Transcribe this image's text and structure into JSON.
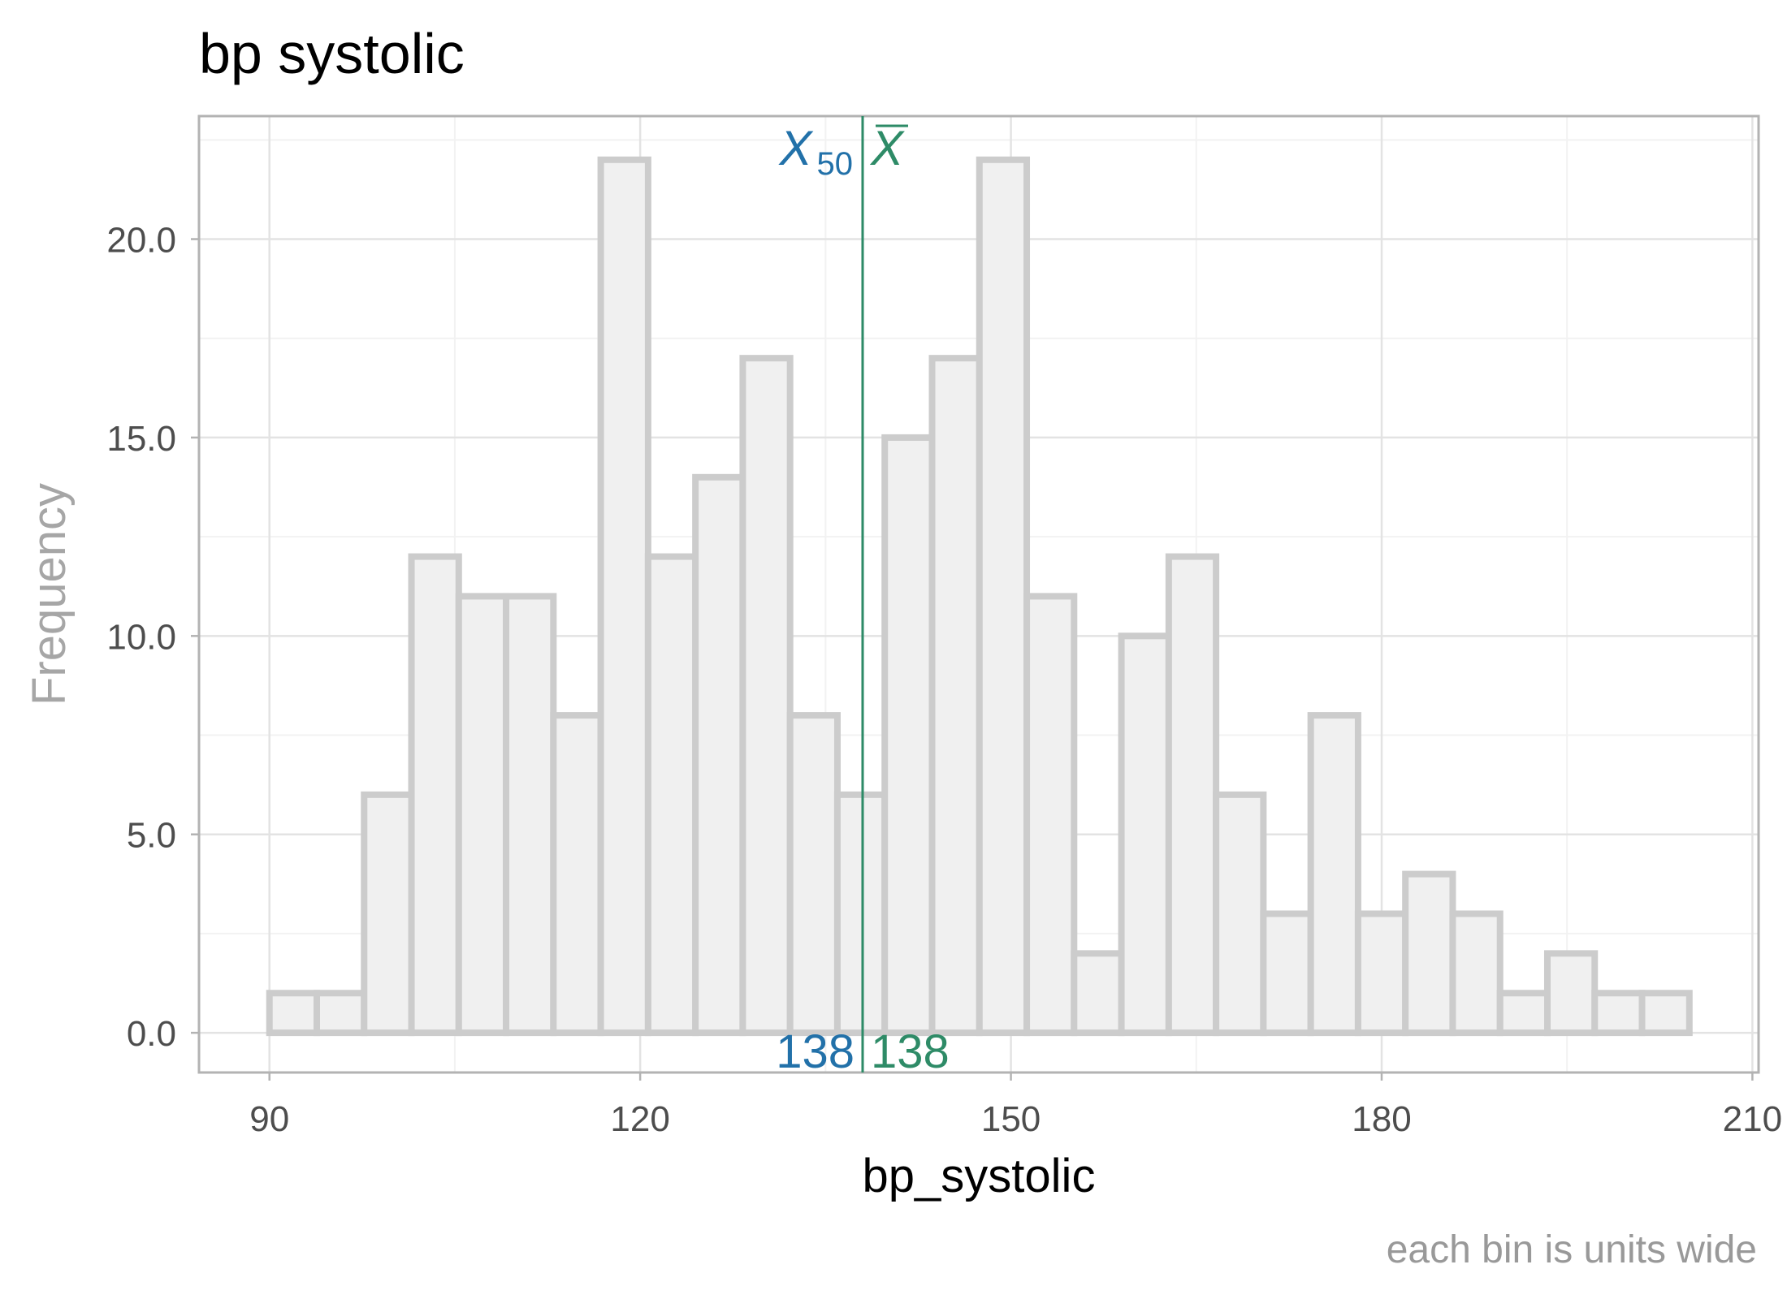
{
  "chart_data": {
    "type": "bar",
    "title": "bp systolic",
    "xlabel": "bp_systolic",
    "ylabel": "Frequency",
    "caption": "each bin is  units wide",
    "xlim": [
      84.3,
      210.5
    ],
    "ylim": [
      -1.0,
      23.1
    ],
    "x_ticks": [
      90,
      120,
      150,
      180,
      210
    ],
    "x_tick_labels": [
      "90",
      "120",
      "150",
      "180",
      "210"
    ],
    "y_ticks": [
      0,
      5,
      10,
      15,
      20
    ],
    "y_tick_labels": [
      "0.0",
      "5.0",
      "10.0",
      "15.0",
      "20.0"
    ],
    "grid": true,
    "bin_width": 3.83,
    "bins_start": 90,
    "values": [
      1,
      1,
      6,
      12,
      11,
      11,
      8,
      22,
      12,
      14,
      17,
      8,
      6,
      15,
      17,
      22,
      11,
      2,
      10,
      12,
      6,
      3,
      8,
      3,
      4,
      3,
      1,
      2,
      1,
      1
    ],
    "median": {
      "symbol": "X",
      "subscript": "50",
      "value": 138,
      "label": "138",
      "color": "#2271a9"
    },
    "mean": {
      "symbol": "X",
      "value": 138,
      "label": "138",
      "color": "#2e8b67"
    },
    "bar_fill": "#f0f0f0",
    "bar_stroke": "#cccccc"
  }
}
